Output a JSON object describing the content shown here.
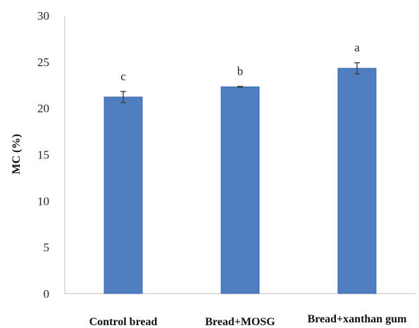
{
  "chart_data": {
    "type": "bar",
    "categories": [
      "Control bread",
      "Bread+MOSG",
      "Bread+xanthan gum"
    ],
    "values": [
      21.2,
      22.3,
      24.3
    ],
    "errors": [
      0.6,
      0.05,
      0.6
    ],
    "significance": [
      "c",
      "b",
      "a"
    ],
    "title": "",
    "xlabel": "",
    "ylabel": "MC (%)",
    "ylim": [
      0,
      30
    ],
    "yticks": [
      0,
      5,
      10,
      15,
      20,
      25,
      30
    ],
    "grid": false,
    "legend": "none",
    "bar_color": "#4f7fc1",
    "bar_edge_color": "#3a67a5",
    "error_color": "#444444"
  }
}
